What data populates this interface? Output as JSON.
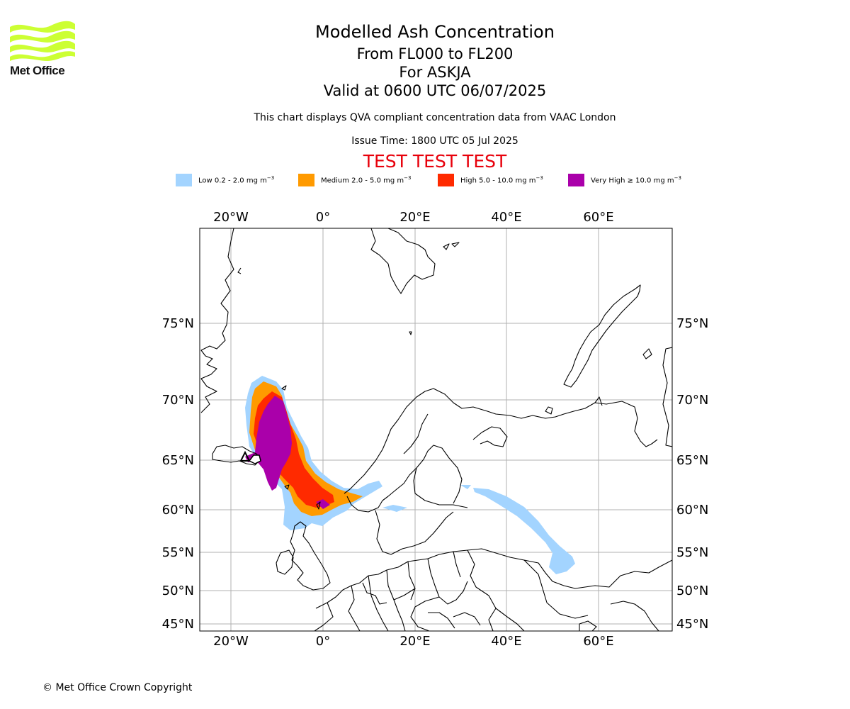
{
  "brand": {
    "name": "Met Office",
    "logo_color": "#ccff33"
  },
  "header": {
    "title": "Modelled Ash Concentration",
    "levels": "From FL000 to FL200",
    "volcano": "For ASKJA",
    "valid": "Valid at 0600 UTC 06/07/2025",
    "note": "This chart displays QVA compliant concentration data from VAAC London",
    "issue": "Issue Time: 1800 UTC 05 Jul 2025",
    "test_banner": "TEST TEST TEST",
    "test_color": "#e8000b"
  },
  "legend": [
    {
      "label": "Low 0.2 - 2.0 mg m",
      "unit_exp": "−3",
      "color": "#a3d4ff"
    },
    {
      "label": "Medium 2.0 - 5.0 mg m",
      "unit_exp": "−3",
      "color": "#ff9a00"
    },
    {
      "label": "High 5.0 - 10.0 mg m",
      "unit_exp": "−3",
      "color": "#ff2a00"
    },
    {
      "label": "Very High  ≥  10.0 mg m",
      "unit_exp": "−3",
      "color": "#aa00aa"
    }
  ],
  "axes": {
    "lon_labels": [
      "20°W",
      "0°",
      "20°E",
      "40°E",
      "60°E"
    ],
    "lat_labels": [
      "75°N",
      "70°N",
      "65°N",
      "60°N",
      "55°N",
      "50°N",
      "45°N"
    ],
    "gridlines": true
  },
  "footer": {
    "copyright": "© Met Office Crown Copyright"
  }
}
